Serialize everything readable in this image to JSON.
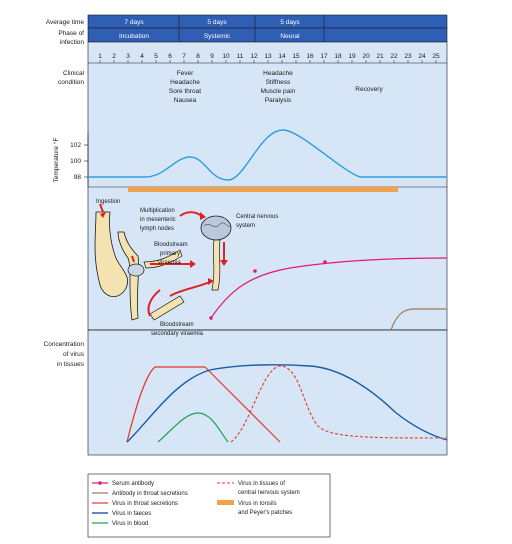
{
  "header": {
    "average_time_label": "Average time",
    "phase_label_line1": "Phase of",
    "phase_label_line2": "infection",
    "durations": [
      "7 days",
      "5 days",
      "5 days"
    ],
    "phases": [
      "Incubation",
      "Systemic",
      "Neural"
    ]
  },
  "day_ticks": [
    "1",
    "2",
    "3",
    "4",
    "5",
    "6",
    "7",
    "8",
    "9",
    "10",
    "11",
    "12",
    "13",
    "14",
    "15",
    "16",
    "17",
    "18",
    "19",
    "20",
    "21",
    "22",
    "23",
    "24",
    "25"
  ],
  "clinical": {
    "label_line1": "Clinical",
    "label_line2": "condition",
    "systemic_symptoms": [
      "Fever",
      "Headache",
      "Sore throat",
      "Nausea"
    ],
    "neural_symptoms": [
      "Headache",
      "Stiffness",
      "Muscle pain",
      "Paralysis"
    ],
    "recovery": "Recovery"
  },
  "temperature": {
    "axis_label": "Temperature °F",
    "ticks": [
      "102",
      "100",
      "98"
    ]
  },
  "pathway": {
    "ingestion": "Ingestion",
    "multiplication": [
      "Multiplication",
      "in mesenteric",
      "lymph nodes"
    ],
    "primary": [
      "Bloodstream",
      "primary",
      "viraemia"
    ],
    "cns": [
      "Central nervous",
      "system"
    ],
    "secondary": [
      "Bloodstream",
      "secondary viraemia"
    ]
  },
  "concentration": {
    "label_line1": "Concentration",
    "label_line2": "of virus",
    "label_line3": "in tissues"
  },
  "legend": {
    "serum_antibody": "Serum antibody",
    "antibody_throat": "Antibody in throat secretions",
    "virus_throat": "Virus in throat secretions",
    "virus_faeces": "Virus in faeces",
    "virus_blood": "Virus in blood",
    "virus_cns_line1": "Virus in tissues of",
    "virus_cns_line2": "central nervous system",
    "virus_tonsils_line1": "Virus in tonsils",
    "virus_tonsils_line2": "and Peyer's patches"
  },
  "colors": {
    "header_blue": "#2f5fb5",
    "panel_blue": "#d6e6f7",
    "temperature_line": "#2aa0df",
    "tonsils_bar": "#f2a24a",
    "serum_antibody": "#e0187a",
    "antibody_throat": "#9a7a60",
    "virus_throat": "#e23a2a",
    "virus_faeces": "#1a5aa8",
    "virus_blood": "#1aa050",
    "virus_cns": "#e23a2a",
    "arrow_red": "#e02020",
    "organ_fill": "#f4e3b0"
  }
}
